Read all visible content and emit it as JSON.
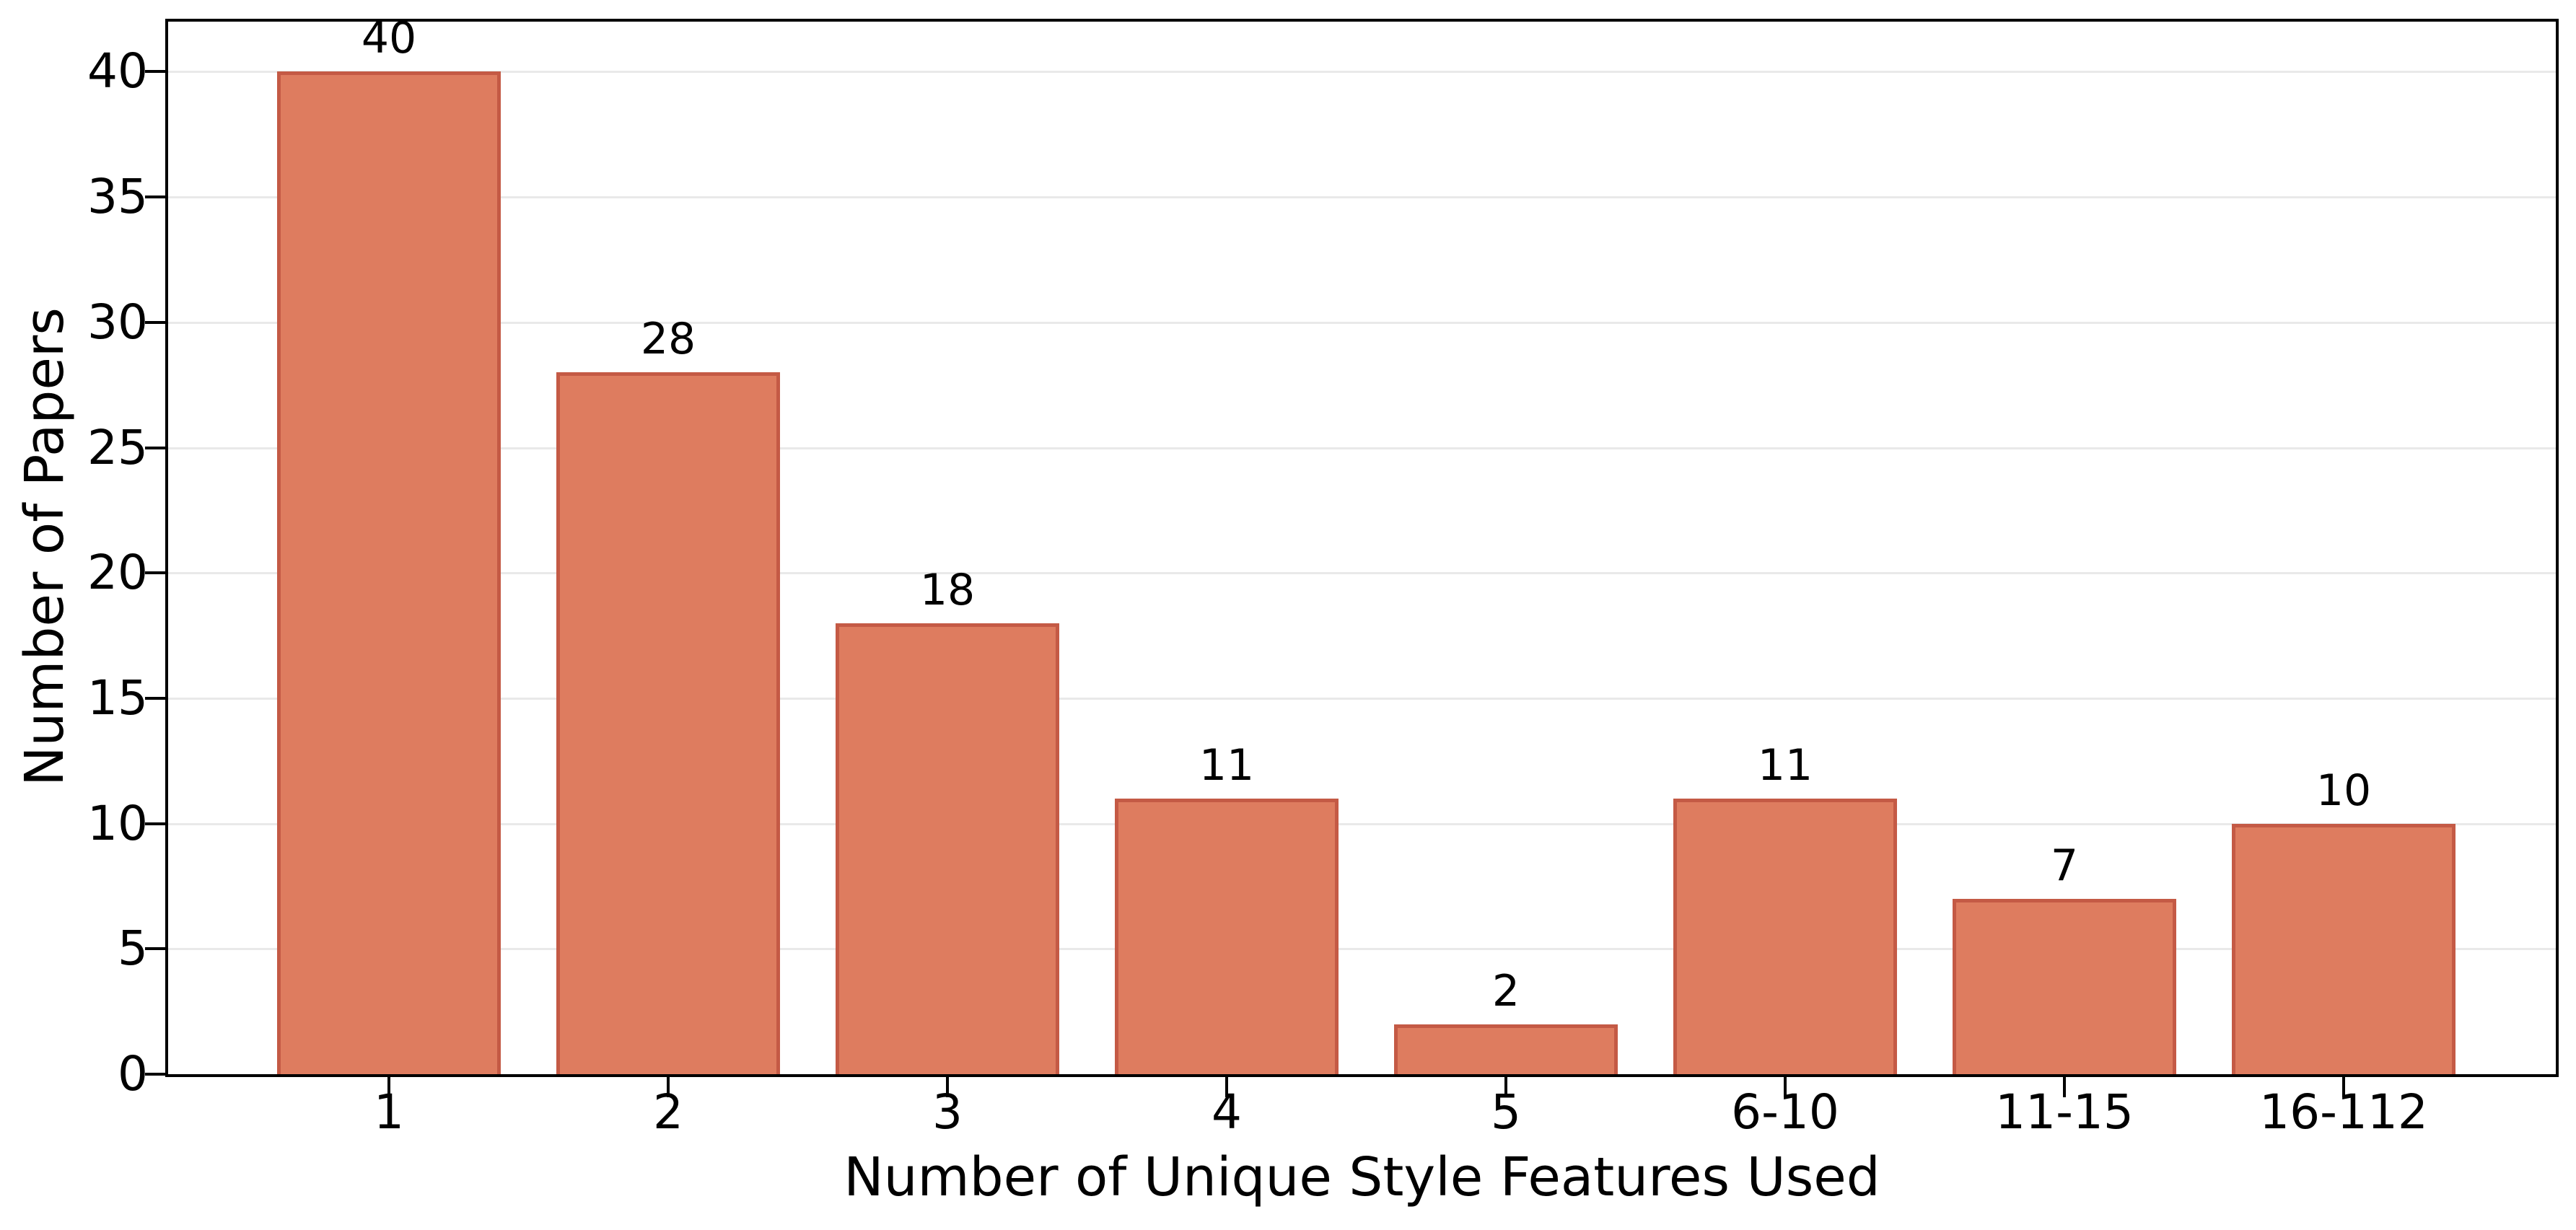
{
  "figure": {
    "background": "#FFFFFF"
  },
  "chart_data": {
    "type": "bar",
    "title": "",
    "categories": [
      "1",
      "2",
      "3",
      "4",
      "5",
      "6-10",
      "11-15",
      "16-112"
    ],
    "values": [
      40,
      28,
      18,
      11,
      2,
      11,
      7,
      10
    ],
    "bar_labels": [
      "40",
      "28",
      "18",
      "11",
      "2",
      "11",
      "7",
      "10"
    ],
    "xlabel": "Number of Unique Style Features Used",
    "ylabel": "Number of Papers",
    "yticks": [
      0,
      5,
      10,
      15,
      20,
      25,
      30,
      35,
      40
    ],
    "ylim": [
      0,
      42
    ],
    "xlim": [
      -0.79,
      7.76
    ],
    "bar_width_fraction": 0.8,
    "grid": "horizontal",
    "legend": "none",
    "colors": {
      "bar_fill": "#DE7C5F",
      "bar_edge": "#C45A45",
      "grid": "#E9E9E9",
      "spine": "#000000",
      "text": "#000000",
      "background": "#FFFFFF"
    }
  }
}
